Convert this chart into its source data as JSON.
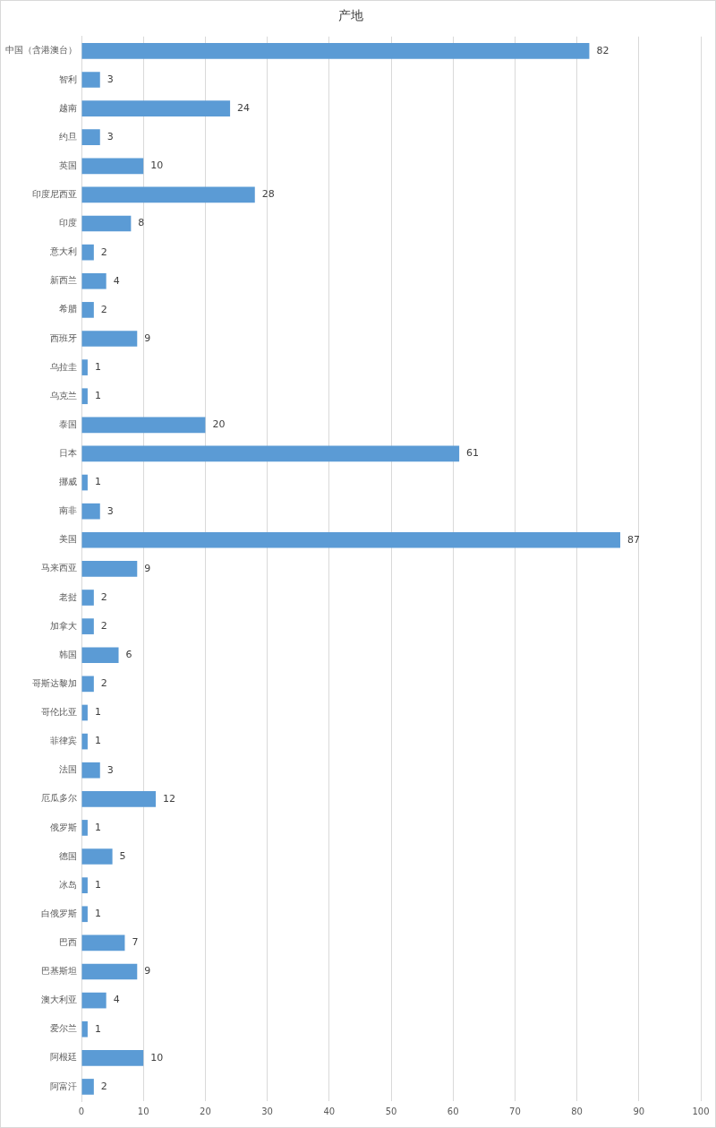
{
  "chart_data": {
    "type": "bar",
    "orientation": "horizontal",
    "title": "产地",
    "categories": [
      "中国（含港澳台）",
      "智利",
      "越南",
      "约旦",
      "英国",
      "印度尼西亚",
      "印度",
      "意大利",
      "新西兰",
      "希腊",
      "西班牙",
      "乌拉圭",
      "乌克兰",
      "泰国",
      "日本",
      "挪威",
      "南非",
      "美国",
      "马来西亚",
      "老挝",
      "加拿大",
      "韩国",
      "哥斯达黎加",
      "哥伦比亚",
      "菲律宾",
      "法国",
      "厄瓜多尔",
      "俄罗斯",
      "德国",
      "冰岛",
      "白俄罗斯",
      "巴西",
      "巴基斯坦",
      "澳大利亚",
      "爱尔兰",
      "阿根廷",
      "阿富汗"
    ],
    "values": [
      82,
      3,
      24,
      3,
      10,
      28,
      8,
      2,
      4,
      2,
      9,
      1,
      1,
      20,
      61,
      1,
      3,
      87,
      9,
      2,
      2,
      6,
      2,
      1,
      1,
      3,
      12,
      1,
      5,
      1,
      1,
      7,
      9,
      4,
      1,
      10,
      2
    ],
    "color": "#5b9bd5",
    "xlim": [
      0,
      100
    ],
    "xticks": [
      0,
      10,
      20,
      30,
      40,
      50,
      60,
      70,
      80,
      90,
      100
    ],
    "grid": "x",
    "data_labels": true
  }
}
